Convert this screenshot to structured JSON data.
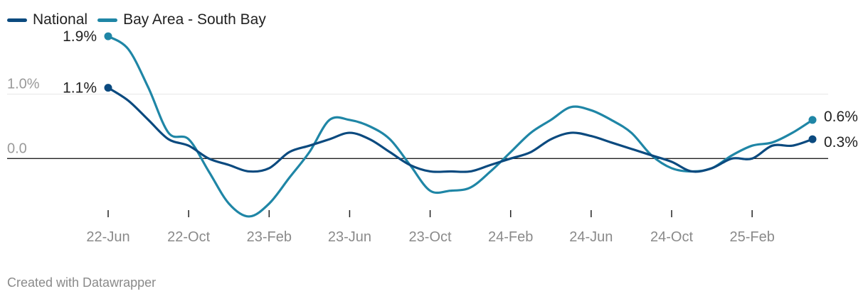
{
  "footer": {
    "credit": "Created with Datawrapper"
  },
  "chart_data": {
    "type": "line",
    "title": "",
    "xlabel": "",
    "ylabel": "",
    "x_ticks": [
      "22-Jun",
      "22-Oct",
      "23-Feb",
      "23-Jun",
      "23-Oct",
      "24-Feb",
      "24-Jun",
      "24-Oct",
      "25-Feb"
    ],
    "y_ticks": [
      {
        "value": 0.0,
        "label": "0.0"
      },
      {
        "value": 1.0,
        "label": "1.0%"
      }
    ],
    "ylim": [
      -1.0,
      2.0
    ],
    "legend": "top-left",
    "series": [
      {
        "name": "National",
        "color": "#0b4a7f",
        "points": [
          [
            "22-Jun",
            1.1
          ],
          [
            "22-Jul",
            0.9
          ],
          [
            "22-Aug",
            0.6
          ],
          [
            "22-Sep",
            0.3
          ],
          [
            "22-Oct",
            0.2
          ],
          [
            "22-Nov",
            0.0
          ],
          [
            "22-Dec",
            -0.1
          ],
          [
            "23-Jan",
            -0.2
          ],
          [
            "23-Feb",
            -0.15
          ],
          [
            "23-Mar",
            0.1
          ],
          [
            "23-Apr",
            0.2
          ],
          [
            "23-May",
            0.3
          ],
          [
            "23-Jun",
            0.4
          ],
          [
            "23-Jul",
            0.3
          ],
          [
            "23-Aug",
            0.1
          ],
          [
            "23-Sep",
            -0.1
          ],
          [
            "23-Oct",
            -0.2
          ],
          [
            "23-Nov",
            -0.2
          ],
          [
            "23-Dec",
            -0.2
          ],
          [
            "24-Jan",
            -0.1
          ],
          [
            "24-Feb",
            0.0
          ],
          [
            "24-Mar",
            0.1
          ],
          [
            "24-Apr",
            0.3
          ],
          [
            "24-May",
            0.4
          ],
          [
            "24-Jun",
            0.35
          ],
          [
            "24-Jul",
            0.25
          ],
          [
            "24-Aug",
            0.15
          ],
          [
            "24-Sep",
            0.05
          ],
          [
            "24-Oct",
            -0.05
          ],
          [
            "24-Nov",
            -0.2
          ],
          [
            "24-Dec",
            -0.15
          ],
          [
            "25-Jan",
            0.0
          ],
          [
            "25-Feb",
            0.0
          ],
          [
            "25-Mar",
            0.2
          ],
          [
            "25-Apr",
            0.2
          ],
          [
            "25-May",
            0.3
          ]
        ],
        "end_label": "0.3%",
        "start_label": "1.1%"
      },
      {
        "name": "Bay Area - South Bay",
        "color": "#1f86a6",
        "points": [
          [
            "22-Jun",
            1.9
          ],
          [
            "22-Jul",
            1.7
          ],
          [
            "22-Aug",
            1.1
          ],
          [
            "22-Sep",
            0.4
          ],
          [
            "22-Oct",
            0.3
          ],
          [
            "22-Nov",
            -0.2
          ],
          [
            "22-Dec",
            -0.7
          ],
          [
            "23-Jan",
            -0.9
          ],
          [
            "23-Feb",
            -0.7
          ],
          [
            "23-Mar",
            -0.3
          ],
          [
            "23-Apr",
            0.1
          ],
          [
            "23-May",
            0.6
          ],
          [
            "23-Jun",
            0.6
          ],
          [
            "23-Jul",
            0.5
          ],
          [
            "23-Aug",
            0.3
          ],
          [
            "23-Sep",
            -0.1
          ],
          [
            "23-Oct",
            -0.5
          ],
          [
            "23-Nov",
            -0.5
          ],
          [
            "23-Dec",
            -0.45
          ],
          [
            "24-Jan",
            -0.2
          ],
          [
            "24-Feb",
            0.1
          ],
          [
            "24-Mar",
            0.4
          ],
          [
            "24-Apr",
            0.6
          ],
          [
            "24-May",
            0.8
          ],
          [
            "24-Jun",
            0.75
          ],
          [
            "24-Jul",
            0.6
          ],
          [
            "24-Aug",
            0.4
          ],
          [
            "24-Sep",
            0.05
          ],
          [
            "24-Oct",
            -0.15
          ],
          [
            "24-Nov",
            -0.2
          ],
          [
            "24-Dec",
            -0.15
          ],
          [
            "25-Jan",
            0.05
          ],
          [
            "25-Feb",
            0.2
          ],
          [
            "25-Mar",
            0.25
          ],
          [
            "25-Apr",
            0.4
          ],
          [
            "25-May",
            0.6
          ]
        ],
        "end_label": "0.6%",
        "start_label": "1.9%"
      }
    ]
  }
}
